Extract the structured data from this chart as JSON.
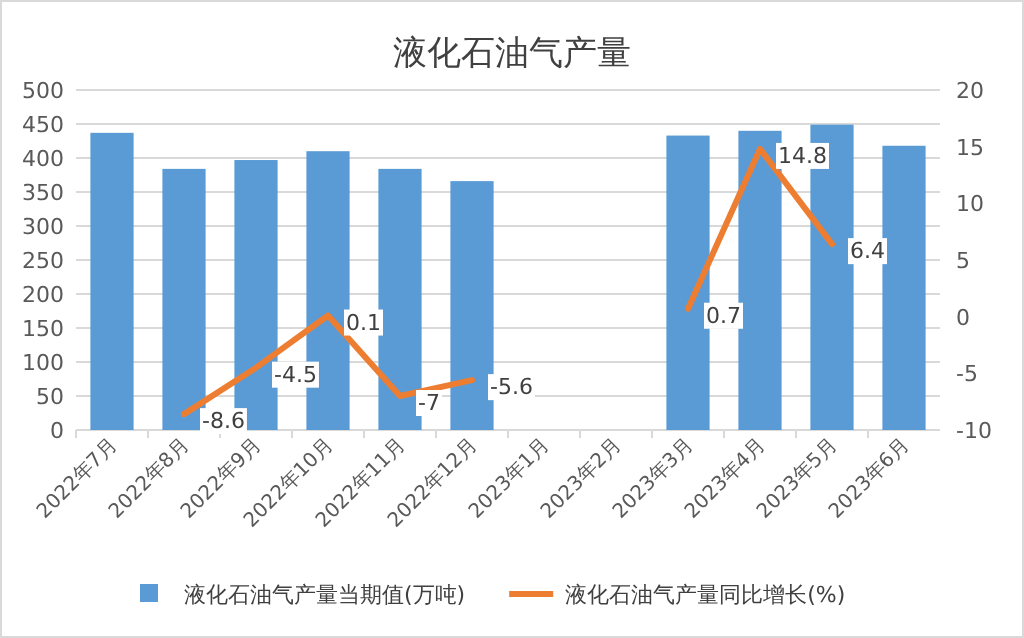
{
  "chart_data": {
    "type": "bar",
    "title": "液化石油气产量",
    "categories": [
      "2022年7月",
      "2022年8月",
      "2022年9月",
      "2022年10月",
      "2022年11月",
      "2022年12月",
      "2023年1月",
      "2023年2月",
      "2023年3月",
      "2023年4月",
      "2023年5月",
      "2023年6月"
    ],
    "series": [
      {
        "name": "液化石油气产量当期值(万吨)",
        "color": "#5b9bd5",
        "values": [
          437,
          384,
          397,
          410,
          384,
          366,
          null,
          null,
          433,
          440,
          449,
          418
        ]
      },
      {
        "name": "液化石油气产量同比增长(%)",
        "type": "line",
        "axis": "y2",
        "color": "#ed7d31",
        "values": [
          null,
          -8.6,
          -4.5,
          0.1,
          -7,
          -5.6,
          null,
          null,
          0.7,
          14.8,
          6.4,
          null
        ],
        "value_labels": [
          null,
          "-8.6",
          "-4.5",
          "0.1",
          "-7",
          "-5.6",
          null,
          null,
          "0.7",
          "14.8",
          "6.4",
          null
        ]
      }
    ],
    "ylim": [
      0,
      500
    ],
    "yticks": [
      0,
      50,
      100,
      150,
      200,
      250,
      300,
      350,
      400,
      450,
      500
    ],
    "y2lim": [
      -10,
      20
    ],
    "y2ticks": [
      -10,
      -5,
      0,
      5,
      10,
      15,
      20
    ],
    "grid": "y",
    "legend": "bottom",
    "marker": "none",
    "line_style": "solid"
  }
}
